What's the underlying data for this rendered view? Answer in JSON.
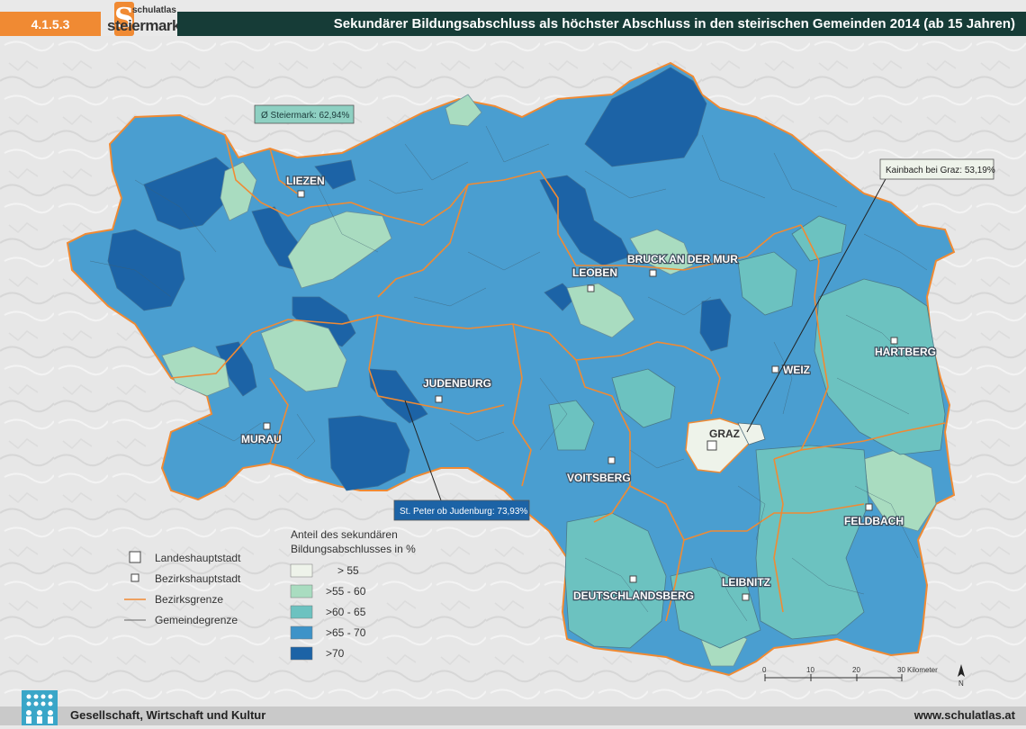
{
  "header": {
    "section_number": "4.1.5.3",
    "logo_small": "schulatlas",
    "logo_big": "steiermark",
    "logo_letter": "S",
    "title": "Sekundärer Bildungsabschluss als höchster Abschluss in den steirischen Gemeinden 2014  (ab 15 Jahren)"
  },
  "colors": {
    "accent_orange": "#f08a33",
    "title_bg": "#163c37",
    "class_1": "#eef3ea",
    "class_2": "#a9dcc0",
    "class_3": "#6cc2c0",
    "class_4": "#3d93c8",
    "class_5": "#1c63a6",
    "district_border": "#f08a33",
    "municipality_border": "#4a6a7a"
  },
  "map": {
    "average_label": "Ø Steiermark: 62,94%",
    "callouts": [
      {
        "label": "Kainbach bei Graz: 53,19%",
        "style": "light"
      },
      {
        "label": "St. Peter ob Judenburg: 73,93%",
        "style": "dark"
      }
    ],
    "capital": {
      "name": "GRAZ"
    },
    "district_capitals": [
      {
        "name": "LIEZEN"
      },
      {
        "name": "LEOBEN"
      },
      {
        "name": "BRUCK AN DER MUR"
      },
      {
        "name": "JUDENBURG"
      },
      {
        "name": "MURAU"
      },
      {
        "name": "WEIZ"
      },
      {
        "name": "HARTBERG"
      },
      {
        "name": "VOITSBERG"
      },
      {
        "name": "FELDBACH"
      },
      {
        "name": "DEUTSCHLANDSBERG"
      },
      {
        "name": "LEIBNITZ"
      }
    ],
    "scale": {
      "ticks": [
        "0",
        "10",
        "20",
        "30"
      ],
      "unit": "Kilometer"
    },
    "north": "N"
  },
  "legend": {
    "symbols": [
      {
        "label": "Landeshauptstadt",
        "icon": "large-square-icon"
      },
      {
        "label": "Bezirkshauptstadt",
        "icon": "small-square-icon"
      },
      {
        "label": "Bezirksgrenze",
        "icon": "orange-line-icon"
      },
      {
        "label": "Gemeindegrenze",
        "icon": "grey-line-icon"
      }
    ],
    "title_line1": "Anteil des sekundären",
    "title_line2": "Bildungsabschlusses in %",
    "classes": [
      {
        "label": "> 55",
        "color": "#eef3ea"
      },
      {
        "label": ">55 - 60",
        "color": "#a9dcc0"
      },
      {
        "label": ">60 - 65",
        "color": "#6cc2c0"
      },
      {
        "label": ">65 - 70",
        "color": "#3d93c8"
      },
      {
        "label": ">70",
        "color": "#1c63a6"
      }
    ]
  },
  "footer": {
    "left": "Gesellschaft, Wirtschaft und Kultur",
    "right": "www.schulatlas.at"
  }
}
